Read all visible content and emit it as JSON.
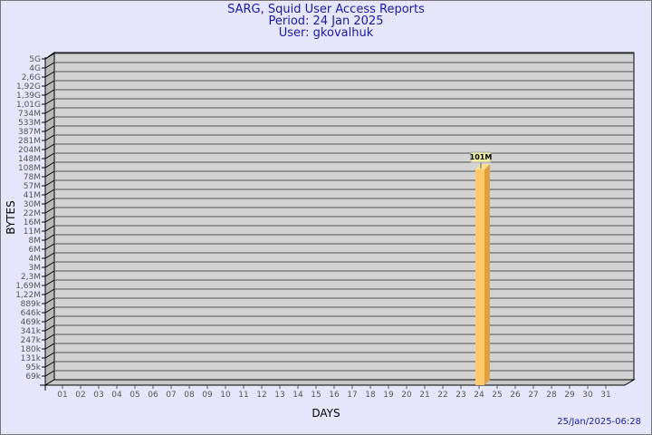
{
  "chart_data": {
    "type": "bar",
    "title": "SARG, Squid User Access Reports",
    "subtitle_period": "Period: 24 Jan 2025",
    "subtitle_user": "User: gkovalhuk",
    "xlabel": "DAYS",
    "ylabel": "BYTES",
    "scale": "log",
    "grid": true,
    "y_ticks": [
      "5G",
      "4G",
      "2,6G",
      "1,92G",
      "1,39G",
      "1,01G",
      "734M",
      "533M",
      "387M",
      "281M",
      "204M",
      "148M",
      "108M",
      "78M",
      "57M",
      "41M",
      "30M",
      "22M",
      "16M",
      "11M",
      "8M",
      "6M",
      "4M",
      "3M",
      "2,3M",
      "1,69M",
      "1,22M",
      "889k",
      "646k",
      "469k",
      "341k",
      "247k",
      "180k",
      "131k",
      "95k",
      "69k"
    ],
    "categories": [
      "01",
      "02",
      "03",
      "04",
      "05",
      "06",
      "07",
      "08",
      "09",
      "10",
      "11",
      "12",
      "13",
      "14",
      "15",
      "16",
      "17",
      "18",
      "19",
      "20",
      "21",
      "22",
      "23",
      "24",
      "25",
      "26",
      "27",
      "28",
      "29",
      "30",
      "31"
    ],
    "bars": [
      {
        "category": "24",
        "value": 101000000,
        "label": "101M"
      }
    ],
    "colors": {
      "bar": "#ffc868",
      "bar_side": "#e0a040",
      "plot": "#d3d3d3",
      "background": "#e6e6fa",
      "label_box": "#f0f0a0"
    }
  },
  "timestamp": "25/Jan/2025-06:28"
}
